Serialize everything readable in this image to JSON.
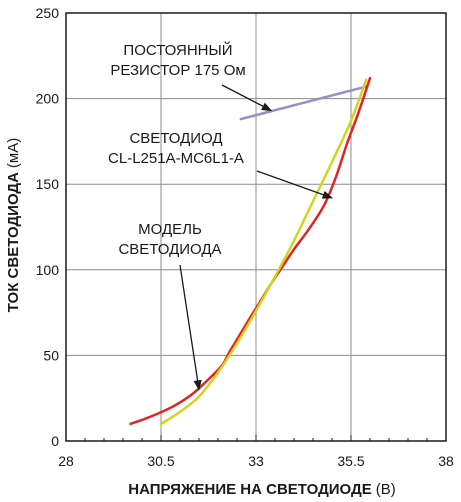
{
  "chart_data": {
    "type": "line",
    "xlabel": "НАПРЯЖЕНИЕ НА СВЕТОДИОДЕ",
    "xlabel_unit": "(В)",
    "ylabel": "ТОК СВЕТОДИОДА",
    "ylabel_unit": "(мА)",
    "xlim": [
      28,
      38
    ],
    "ylim": [
      0,
      250
    ],
    "xticks": [
      28,
      30.5,
      33,
      35.5,
      38
    ],
    "xtick_labels": [
      "28",
      "30.5",
      "33",
      "35.5",
      "38"
    ],
    "yticks": [
      0,
      50,
      100,
      150,
      200,
      250
    ],
    "ytick_labels": [
      "0",
      "50",
      "100",
      "150",
      "200",
      "250"
    ],
    "grid": true,
    "series": [
      {
        "name": "СВЕТОДИОД CL-L251A-MC6L1-A",
        "color": "#e02424",
        "x": [
          29.7,
          30.2,
          30.8,
          31.3,
          31.7,
          32.1,
          32.3,
          32.6,
          32.9,
          33.1,
          33.4,
          33.7,
          34.0,
          34.4,
          34.8,
          35.1,
          35.4,
          35.7,
          36.0
        ],
        "y": [
          10,
          14,
          20,
          27,
          35,
          44,
          52,
          63,
          74,
          81,
          92,
          102,
          112,
          124,
          138,
          154,
          174,
          192,
          212
        ]
      },
      {
        "name": "МОДЕЛЬ СВЕТОДИОДА",
        "color": "#d4d41e",
        "x": [
          30.5,
          31.0,
          31.5,
          32.0,
          32.5,
          33.0,
          33.5,
          34.0,
          34.5,
          35.0,
          35.5,
          35.9
        ],
        "y": [
          10,
          17,
          26,
          40,
          57,
          76,
          96,
          117,
          140,
          163,
          187,
          211
        ]
      },
      {
        "name": "ПОСТОЯННЫЙ РЕЗИСТОР 175 Ом",
        "color": "#9a8cc4",
        "x": [
          32.6,
          35.9
        ],
        "y": [
          188,
          207
        ]
      }
    ],
    "annotations": [
      {
        "lines": [
          "ПОСТОЯННЫЙ",
          "РЕЗИСТОР 175 Ом"
        ],
        "target_series": 2
      },
      {
        "lines": [
          "СВЕТОДИОД",
          "CL-L251A-MC6L1-A"
        ],
        "target_series": 0
      },
      {
        "lines": [
          "МОДЕЛЬ",
          "СВЕТОДИОДА"
        ],
        "target_series": 0
      }
    ],
    "annotation_targets": [
      {
        "x": 33.4,
        "y": 193
      },
      {
        "x": 35.0,
        "y": 142
      },
      {
        "x": 31.5,
        "y": 30
      }
    ]
  }
}
